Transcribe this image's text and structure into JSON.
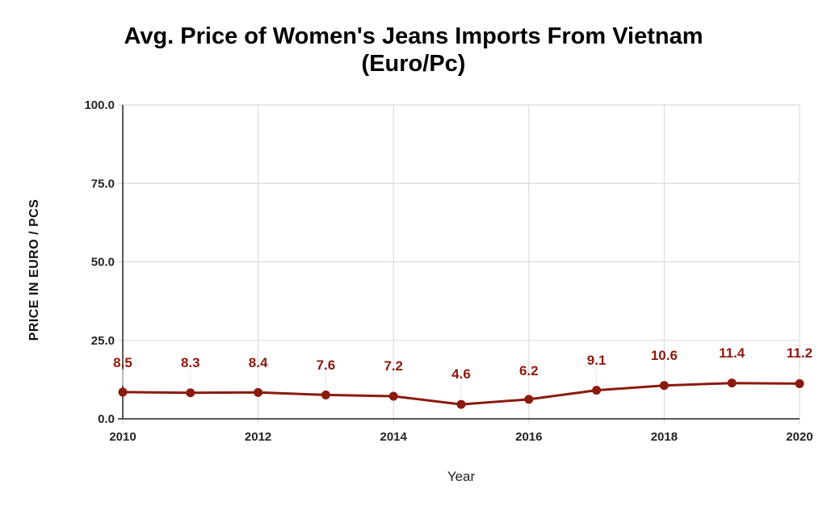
{
  "chart_data": {
    "type": "line",
    "title_lines": [
      "Avg. Price of Women's Jeans Imports From Vietnam",
      "(Euro/Pc)"
    ],
    "xlabel": "Year",
    "ylabel": "PRICE IN EURO / PCS",
    "x": [
      2010,
      2011,
      2012,
      2013,
      2014,
      2015,
      2016,
      2017,
      2018,
      2019,
      2020
    ],
    "x_tick_labels": [
      "2010",
      "2012",
      "2014",
      "2016",
      "2018",
      "2020"
    ],
    "y_tick_labels": [
      "0.0",
      "25.0",
      "50.0",
      "75.0",
      "100.0"
    ],
    "ylim": [
      0,
      100
    ],
    "xlim": [
      2010,
      2020
    ],
    "series": [
      {
        "values": [
          8.5,
          8.3,
          8.4,
          7.6,
          7.2,
          4.6,
          6.2,
          9.1,
          10.6,
          11.4,
          11.2
        ],
        "data_labels": [
          "8.5",
          "8.3",
          "8.4",
          "7.6",
          "7.2",
          "4.6",
          "6.2",
          "9.1",
          "10.6",
          "11.4",
          "11.2"
        ],
        "color": "#8b1a0e"
      }
    ],
    "grid": true,
    "legend": "none"
  }
}
